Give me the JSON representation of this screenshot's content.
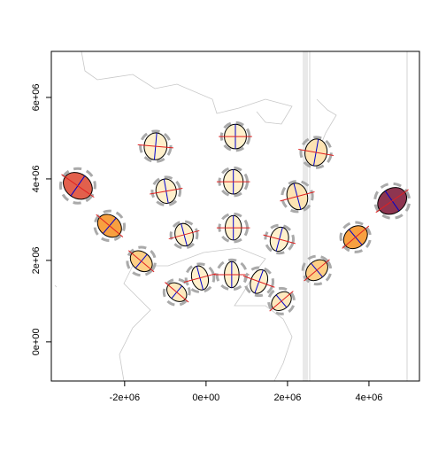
{
  "chart_data": {
    "type": "tissot",
    "xlim": [
      -3800000,
      5240000
    ],
    "ylim": [
      -960000,
      7130000
    ],
    "xticks": [
      {
        "value": -2000000,
        "label": "-2e+06"
      },
      {
        "value": 0,
        "label": "0e+00"
      },
      {
        "value": 2000000,
        "label": "2e+06"
      },
      {
        "value": 4000000,
        "label": "4e+06"
      }
    ],
    "yticks": [
      {
        "value": 0,
        "label": "0e+00"
      },
      {
        "value": 2000000,
        "label": "2e+06"
      },
      {
        "value": 4000000,
        "label": "4e+06"
      },
      {
        "value": 6000000,
        "label": "6e+06"
      }
    ],
    "points": [
      {
        "x": -3150000,
        "y": 3830000,
        "rx": 380000,
        "ry": 300000,
        "angle": 35,
        "color": "#e2604c"
      },
      {
        "x": -2370000,
        "y": 2850000,
        "rx": 320000,
        "ry": 250000,
        "angle": 40,
        "color": "#f7a040"
      },
      {
        "x": -1590000,
        "y": 1980000,
        "rx": 300000,
        "ry": 220000,
        "angle": 40,
        "color": "#fdcf86"
      },
      {
        "x": -720000,
        "y": 1220000,
        "rx": 270000,
        "ry": 200000,
        "angle": 40,
        "color": "#fde9be"
      },
      {
        "x": -150000,
        "y": 1570000,
        "rx": 200000,
        "ry": 300000,
        "angle": -15,
        "color": "#fff0cc"
      },
      {
        "x": 630000,
        "y": 1650000,
        "rx": 180000,
        "ry": 320000,
        "angle": 0,
        "color": "#fff0cc"
      },
      {
        "x": 1300000,
        "y": 1480000,
        "rx": 200000,
        "ry": 300000,
        "angle": 20,
        "color": "#fff0cc"
      },
      {
        "x": 1850000,
        "y": 1000000,
        "rx": 270000,
        "ry": 200000,
        "angle": -40,
        "color": "#fde9be"
      },
      {
        "x": 2720000,
        "y": 1760000,
        "rx": 300000,
        "ry": 220000,
        "angle": -40,
        "color": "#fdcf86"
      },
      {
        "x": 3670000,
        "y": 2570000,
        "rx": 320000,
        "ry": 250000,
        "angle": -40,
        "color": "#f7a040"
      },
      {
        "x": 4570000,
        "y": 3460000,
        "rx": 380000,
        "ry": 300000,
        "angle": -35,
        "color": "#8e3550"
      },
      {
        "x": 2240000,
        "y": 3570000,
        "rx": 250000,
        "ry": 330000,
        "angle": -15,
        "color": "#fde3b3"
      },
      {
        "x": 2700000,
        "y": 4650000,
        "rx": 270000,
        "ry": 330000,
        "angle": 10,
        "color": "#fde3b3"
      },
      {
        "x": 720000,
        "y": 5040000,
        "rx": 270000,
        "ry": 300000,
        "angle": 0,
        "color": "#fff0cc"
      },
      {
        "x": -1240000,
        "y": 4800000,
        "rx": 280000,
        "ry": 330000,
        "angle": 5,
        "color": "#fff0cc"
      },
      {
        "x": -980000,
        "y": 3700000,
        "rx": 250000,
        "ry": 300000,
        "angle": -10,
        "color": "#fff0cc"
      },
      {
        "x": 670000,
        "y": 3930000,
        "rx": 240000,
        "ry": 300000,
        "angle": 0,
        "color": "#fff0cc"
      },
      {
        "x": 670000,
        "y": 2800000,
        "rx": 200000,
        "ry": 300000,
        "angle": 0,
        "color": "#fff0cc"
      },
      {
        "x": -540000,
        "y": 2630000,
        "rx": 220000,
        "ry": 280000,
        "angle": -15,
        "color": "#fff0cc"
      },
      {
        "x": 1800000,
        "y": 2520000,
        "rx": 220000,
        "ry": 300000,
        "angle": 15,
        "color": "#fff0cc"
      }
    ]
  }
}
